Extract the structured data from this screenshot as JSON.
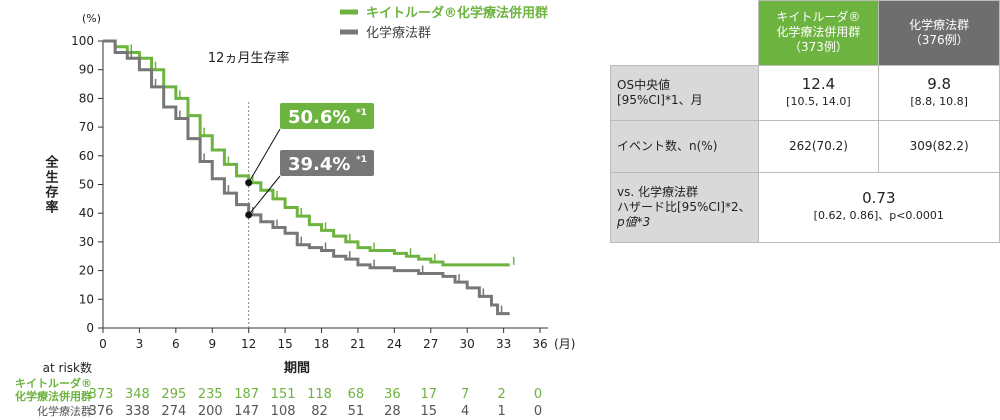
{
  "chart_data": {
    "type": "line",
    "ylabel": "全生存率",
    "yunit": "(%)",
    "xlabel": "期間",
    "xunit": "(月)",
    "xlim": [
      0,
      36
    ],
    "ylim": [
      0,
      100
    ],
    "xticks": [
      0,
      3,
      6,
      9,
      12,
      15,
      18,
      21,
      24,
      27,
      30,
      33,
      36
    ],
    "yticks": [
      0,
      10,
      20,
      30,
      40,
      50,
      60,
      70,
      80,
      90,
      100
    ],
    "grid": false,
    "legend_position": "top",
    "annotation": "12ヵ月生存率",
    "annotation_x": 12,
    "series": [
      {
        "name": "キイトルーダ®化学療法併用群",
        "color": "#6db33f",
        "label": "50.6%",
        "label_note": "*1",
        "point12": 50.6,
        "x": [
          0,
          1,
          2,
          3,
          4,
          5,
          6,
          7,
          8,
          9,
          10,
          11,
          12,
          13,
          14,
          15,
          16,
          17,
          18,
          19,
          20,
          21,
          22,
          24,
          25,
          26,
          27,
          28,
          33.5
        ],
        "y": [
          100,
          98,
          96,
          94,
          90,
          84,
          80,
          74,
          67,
          62,
          57,
          53,
          50.6,
          48,
          45,
          42,
          39,
          36,
          34,
          32,
          30,
          28,
          27,
          26,
          25,
          24,
          23,
          22,
          22
        ]
      },
      {
        "name": "化学療法群",
        "color": "#777777",
        "label": "39.4%",
        "label_note": "*1",
        "point12": 39.4,
        "x": [
          0,
          1,
          2,
          3,
          4,
          5,
          6,
          7,
          8,
          9,
          10,
          11,
          12,
          13,
          14,
          15,
          16,
          17,
          18,
          19,
          20,
          21,
          22,
          24,
          26,
          28,
          29,
          30,
          31,
          32,
          32.5,
          33.5
        ],
        "y": [
          100,
          96,
          94,
          90,
          84,
          77,
          73,
          66,
          58,
          52,
          47,
          43,
          39.4,
          37,
          35,
          33,
          29,
          28,
          27,
          25,
          24,
          22,
          21,
          20,
          19,
          18,
          16,
          14,
          11,
          8,
          5,
          5
        ]
      }
    ],
    "at_risk": {
      "title": "at risk数",
      "times": [
        0,
        3,
        6,
        9,
        12,
        15,
        18,
        21,
        24,
        27,
        30,
        33,
        36
      ],
      "rows": [
        {
          "label1": "キイトルーダ®",
          "label2": "化学療法併用群",
          "values": [
            373,
            348,
            295,
            235,
            187,
            151,
            118,
            68,
            36,
            17,
            7,
            2,
            0
          ]
        },
        {
          "label1": "化学療法群",
          "values": [
            376,
            338,
            274,
            200,
            147,
            108,
            82,
            51,
            28,
            15,
            4,
            1,
            0
          ]
        }
      ]
    }
  },
  "table": {
    "header": [
      {
        "l1": "キイトルーダ®",
        "l2": "化学療法併用群",
        "l3": "（373例）",
        "color": "#6db33f"
      },
      {
        "l1": "化学療法群",
        "l2": "（376例）",
        "color": "#6e6e6e"
      }
    ],
    "rows": [
      {
        "label1": "OS中央値",
        "label2": "[95%CI]*1、月",
        "v1": "12.4",
        "v1b": "[10.5, 14.0]",
        "v2": "9.8",
        "v2b": "[8.8, 10.8]"
      },
      {
        "label1": "イベント数、n(%)",
        "v1": "262(70.2)",
        "v2": "309(82.2)"
      },
      {
        "label1": "vs. 化学療法群",
        "label2": "ハザード比[95%CI]*2、",
        "label3": "p値*3",
        "v": "0.73",
        "vb": "[0.62, 0.86]、p<0.0001"
      }
    ]
  }
}
